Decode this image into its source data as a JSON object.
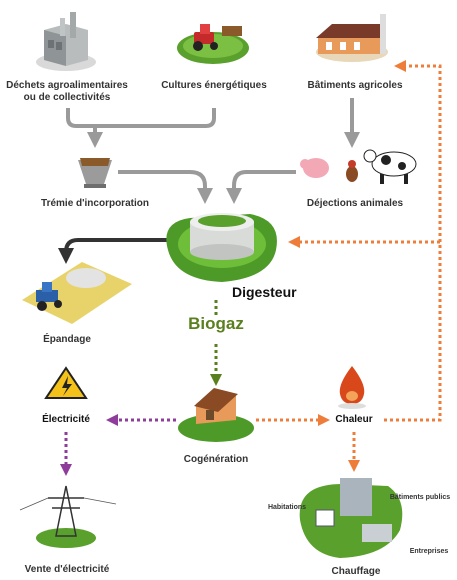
{
  "nodes": {
    "dechets": {
      "line1": "Déchets agroalimentaires",
      "line2": "ou de collectivités"
    },
    "cultures": {
      "label": "Cultures énergétiques"
    },
    "batiments": {
      "label": "Bâtiments agricoles"
    },
    "tremie": {
      "label": "Trémie d'incorporation"
    },
    "dejections": {
      "label": "Déjections animales"
    },
    "digesteur": {
      "label": "Digesteur"
    },
    "epandage": {
      "label": "Épandage"
    },
    "biogaz": {
      "label": "Biogaz"
    },
    "electricite": {
      "label": "Électricité"
    },
    "cogeneration": {
      "label": "Cogénération"
    },
    "chaleur": {
      "label": "Chaleur"
    },
    "vente": {
      "label": "Vente d'électricité"
    },
    "chauffage": {
      "label": "Chauffage",
      "habitations": "Habitations",
      "batiments_publics": "Bâtiments publics",
      "entreprises": "Entreprises"
    }
  },
  "colors": {
    "input_arrow": "#9a9a9a",
    "output_arrow": "#333333",
    "biogaz": "#5a7f1e",
    "electricity_flow": "#8e3d9a",
    "heat_flow": "#ee7d3a"
  }
}
